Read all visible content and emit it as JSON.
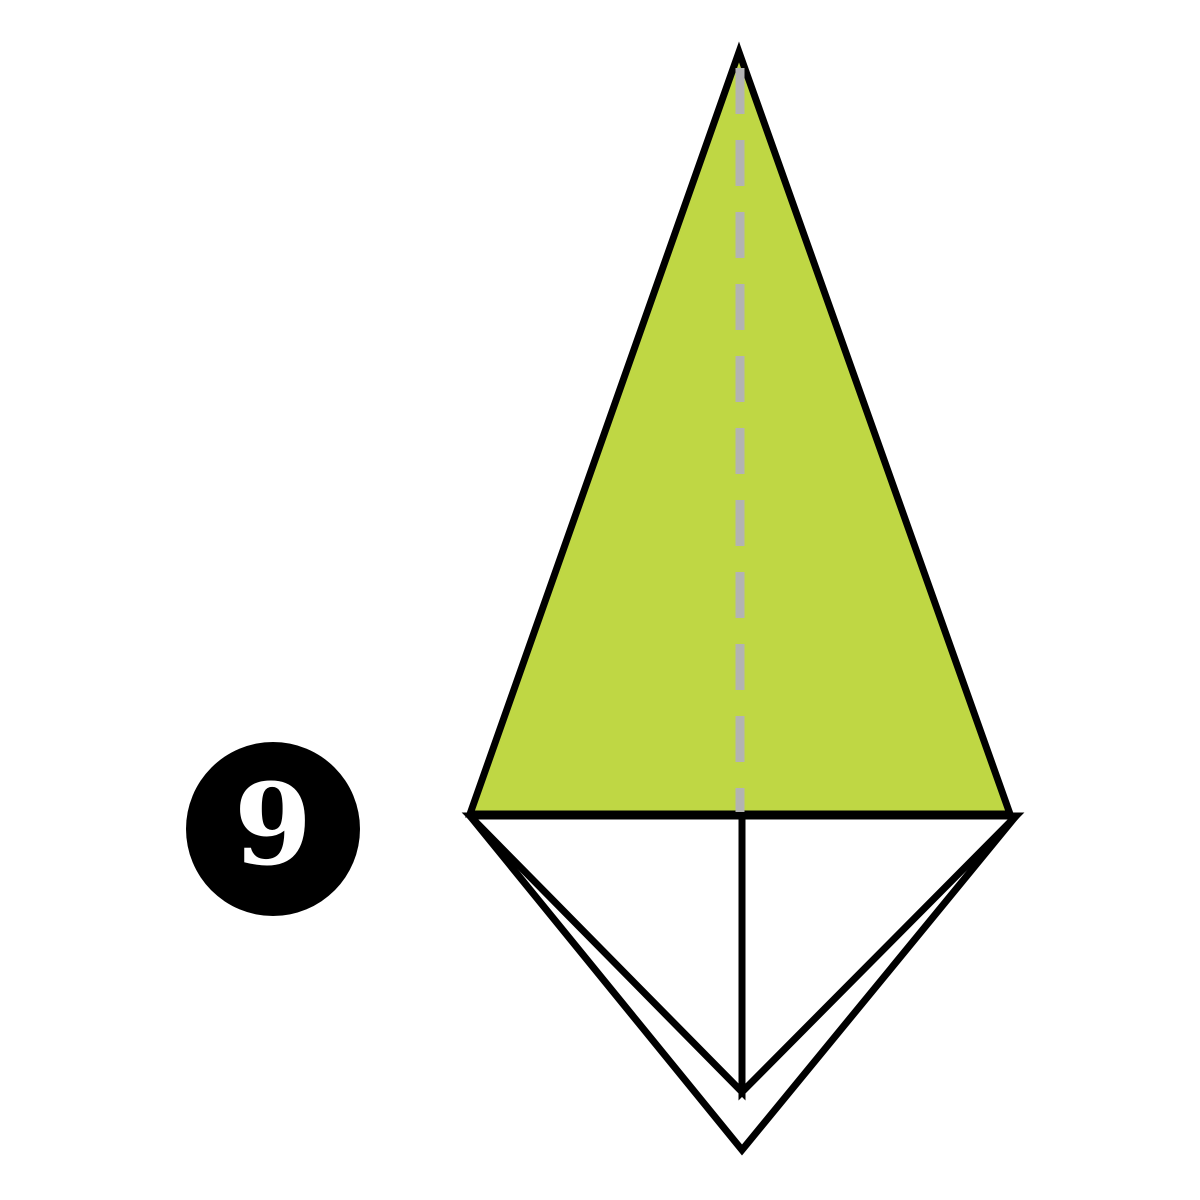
{
  "step": {
    "number": "9"
  },
  "colors": {
    "paper_front": "#bfd744",
    "paper_back": "#ffffff",
    "outline": "#000000",
    "fold_line": "#b3b3b3",
    "badge": "#000000",
    "badge_text": "#ffffff"
  },
  "fold": {
    "type": "valley-fold",
    "line_style": "dashed"
  }
}
